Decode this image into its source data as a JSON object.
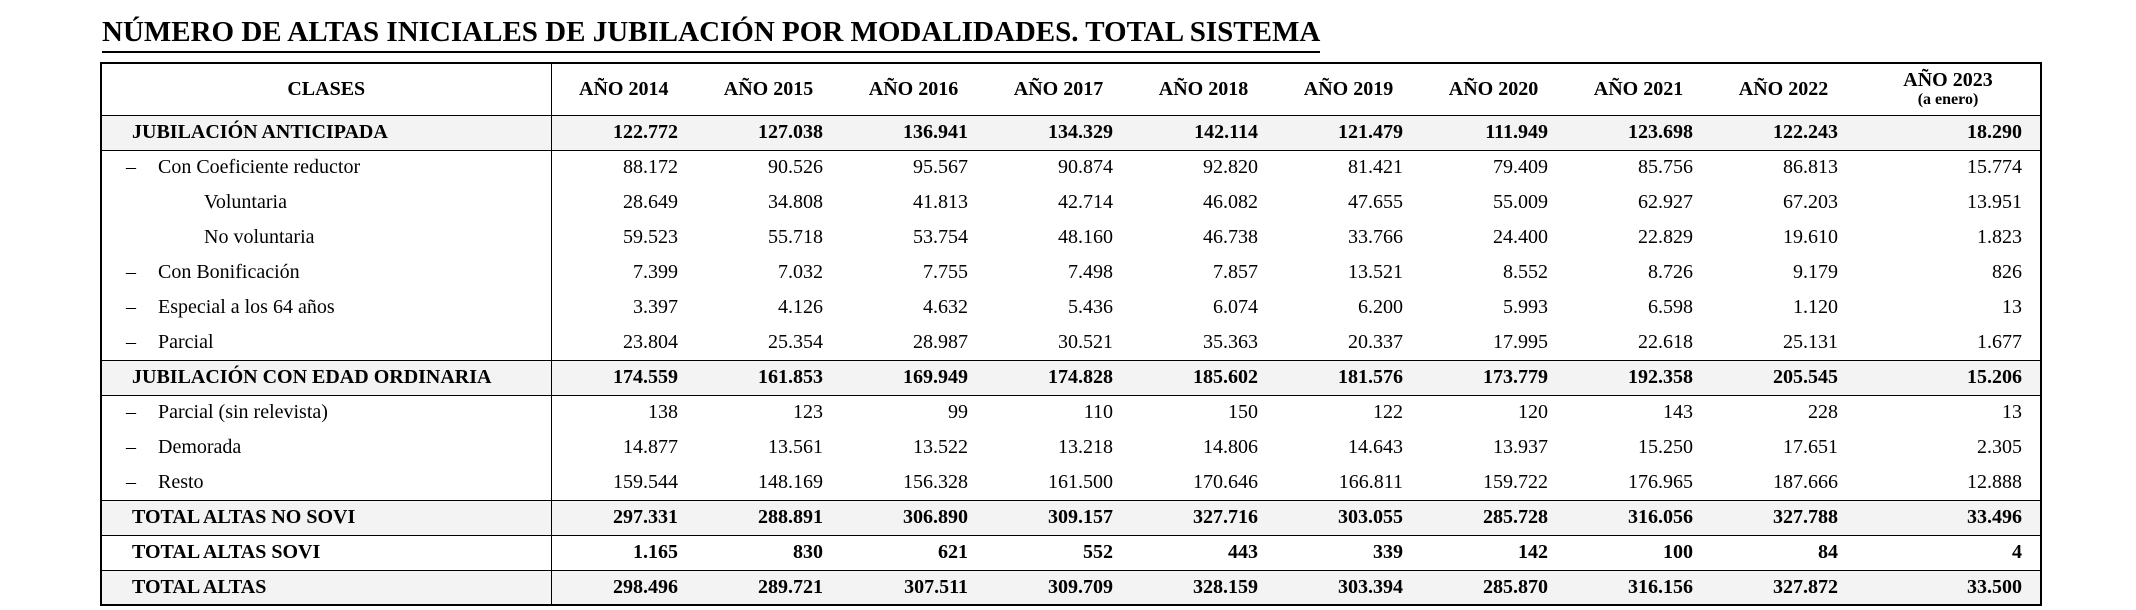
{
  "title": "NÚMERO DE ALTAS INICIALES DE JUBILACIÓN POR MODALIDADES. TOTAL SISTEMA",
  "colors": {
    "background": "#ffffff",
    "text": "#000000",
    "border": "#000000",
    "row_shading": "#f3f3f3"
  },
  "table": {
    "dash_marker": "–",
    "header": {
      "clases": "CLASES",
      "years": [
        "AÑO 2014",
        "AÑO 2015",
        "AÑO 2016",
        "AÑO 2017",
        "AÑO 2018",
        "AÑO 2019",
        "AÑO 2020",
        "AÑO 2021",
        "AÑO 2022"
      ],
      "year2023": {
        "line1": "AÑO 2023",
        "line2": "(a enero)"
      }
    },
    "rows": [
      {
        "label": "JUBILACIÓN ANTICIPADA",
        "style": "section",
        "values": [
          "122.772",
          "127.038",
          "136.941",
          "134.329",
          "142.114",
          "121.479",
          "111.949",
          "123.698",
          "122.243",
          "18.290"
        ]
      },
      {
        "label": "Con Coeficiente reductor",
        "style": "dash",
        "values": [
          "88.172",
          "90.526",
          "95.567",
          "90.874",
          "92.820",
          "81.421",
          "79.409",
          "85.756",
          "86.813",
          "15.774"
        ]
      },
      {
        "label": "Voluntaria",
        "style": "sub",
        "values": [
          "28.649",
          "34.808",
          "41.813",
          "42.714",
          "46.082",
          "47.655",
          "55.009",
          "62.927",
          "67.203",
          "13.951"
        ]
      },
      {
        "label": "No voluntaria",
        "style": "sub",
        "values": [
          "59.523",
          "55.718",
          "53.754",
          "48.160",
          "46.738",
          "33.766",
          "24.400",
          "22.829",
          "19.610",
          "1.823"
        ]
      },
      {
        "label": "Con Bonificación",
        "style": "dash",
        "values": [
          "7.399",
          "7.032",
          "7.755",
          "7.498",
          "7.857",
          "13.521",
          "8.552",
          "8.726",
          "9.179",
          "826"
        ]
      },
      {
        "label": "Especial a los 64 años",
        "style": "dash",
        "values": [
          "3.397",
          "4.126",
          "4.632",
          "5.436",
          "6.074",
          "6.200",
          "5.993",
          "6.598",
          "1.120",
          "13"
        ]
      },
      {
        "label": "Parcial",
        "style": "dash",
        "values": [
          "23.804",
          "25.354",
          "28.987",
          "30.521",
          "35.363",
          "20.337",
          "17.995",
          "22.618",
          "25.131",
          "1.677"
        ]
      },
      {
        "label": "JUBILACIÓN CON EDAD ORDINARIA",
        "style": "section",
        "values": [
          "174.559",
          "161.853",
          "169.949",
          "174.828",
          "185.602",
          "181.576",
          "173.779",
          "192.358",
          "205.545",
          "15.206"
        ]
      },
      {
        "label": "Parcial (sin relevista)",
        "style": "dash",
        "values": [
          "138",
          "123",
          "99",
          "110",
          "150",
          "122",
          "120",
          "143",
          "228",
          "13"
        ]
      },
      {
        "label": "Demorada",
        "style": "dash",
        "values": [
          "14.877",
          "13.561",
          "13.522",
          "13.218",
          "14.806",
          "14.643",
          "13.937",
          "15.250",
          "17.651",
          "2.305"
        ]
      },
      {
        "label": "Resto",
        "style": "dash",
        "values": [
          "159.544",
          "148.169",
          "156.328",
          "161.500",
          "170.646",
          "166.811",
          "159.722",
          "176.965",
          "187.666",
          "12.888"
        ]
      },
      {
        "label": "TOTAL ALTAS NO SOVI",
        "style": "total",
        "values": [
          "297.331",
          "288.891",
          "306.890",
          "309.157",
          "327.716",
          "303.055",
          "285.728",
          "316.056",
          "327.788",
          "33.496"
        ]
      },
      {
        "label": "TOTAL ALTAS SOVI",
        "style": "total-plain",
        "values": [
          "1.165",
          "830",
          "621",
          "552",
          "443",
          "339",
          "142",
          "100",
          "84",
          "4"
        ]
      },
      {
        "label": "TOTAL ALTAS",
        "style": "total",
        "values": [
          "298.496",
          "289.721",
          "307.511",
          "309.709",
          "328.159",
          "303.394",
          "285.870",
          "316.156",
          "327.872",
          "33.500"
        ]
      }
    ]
  }
}
